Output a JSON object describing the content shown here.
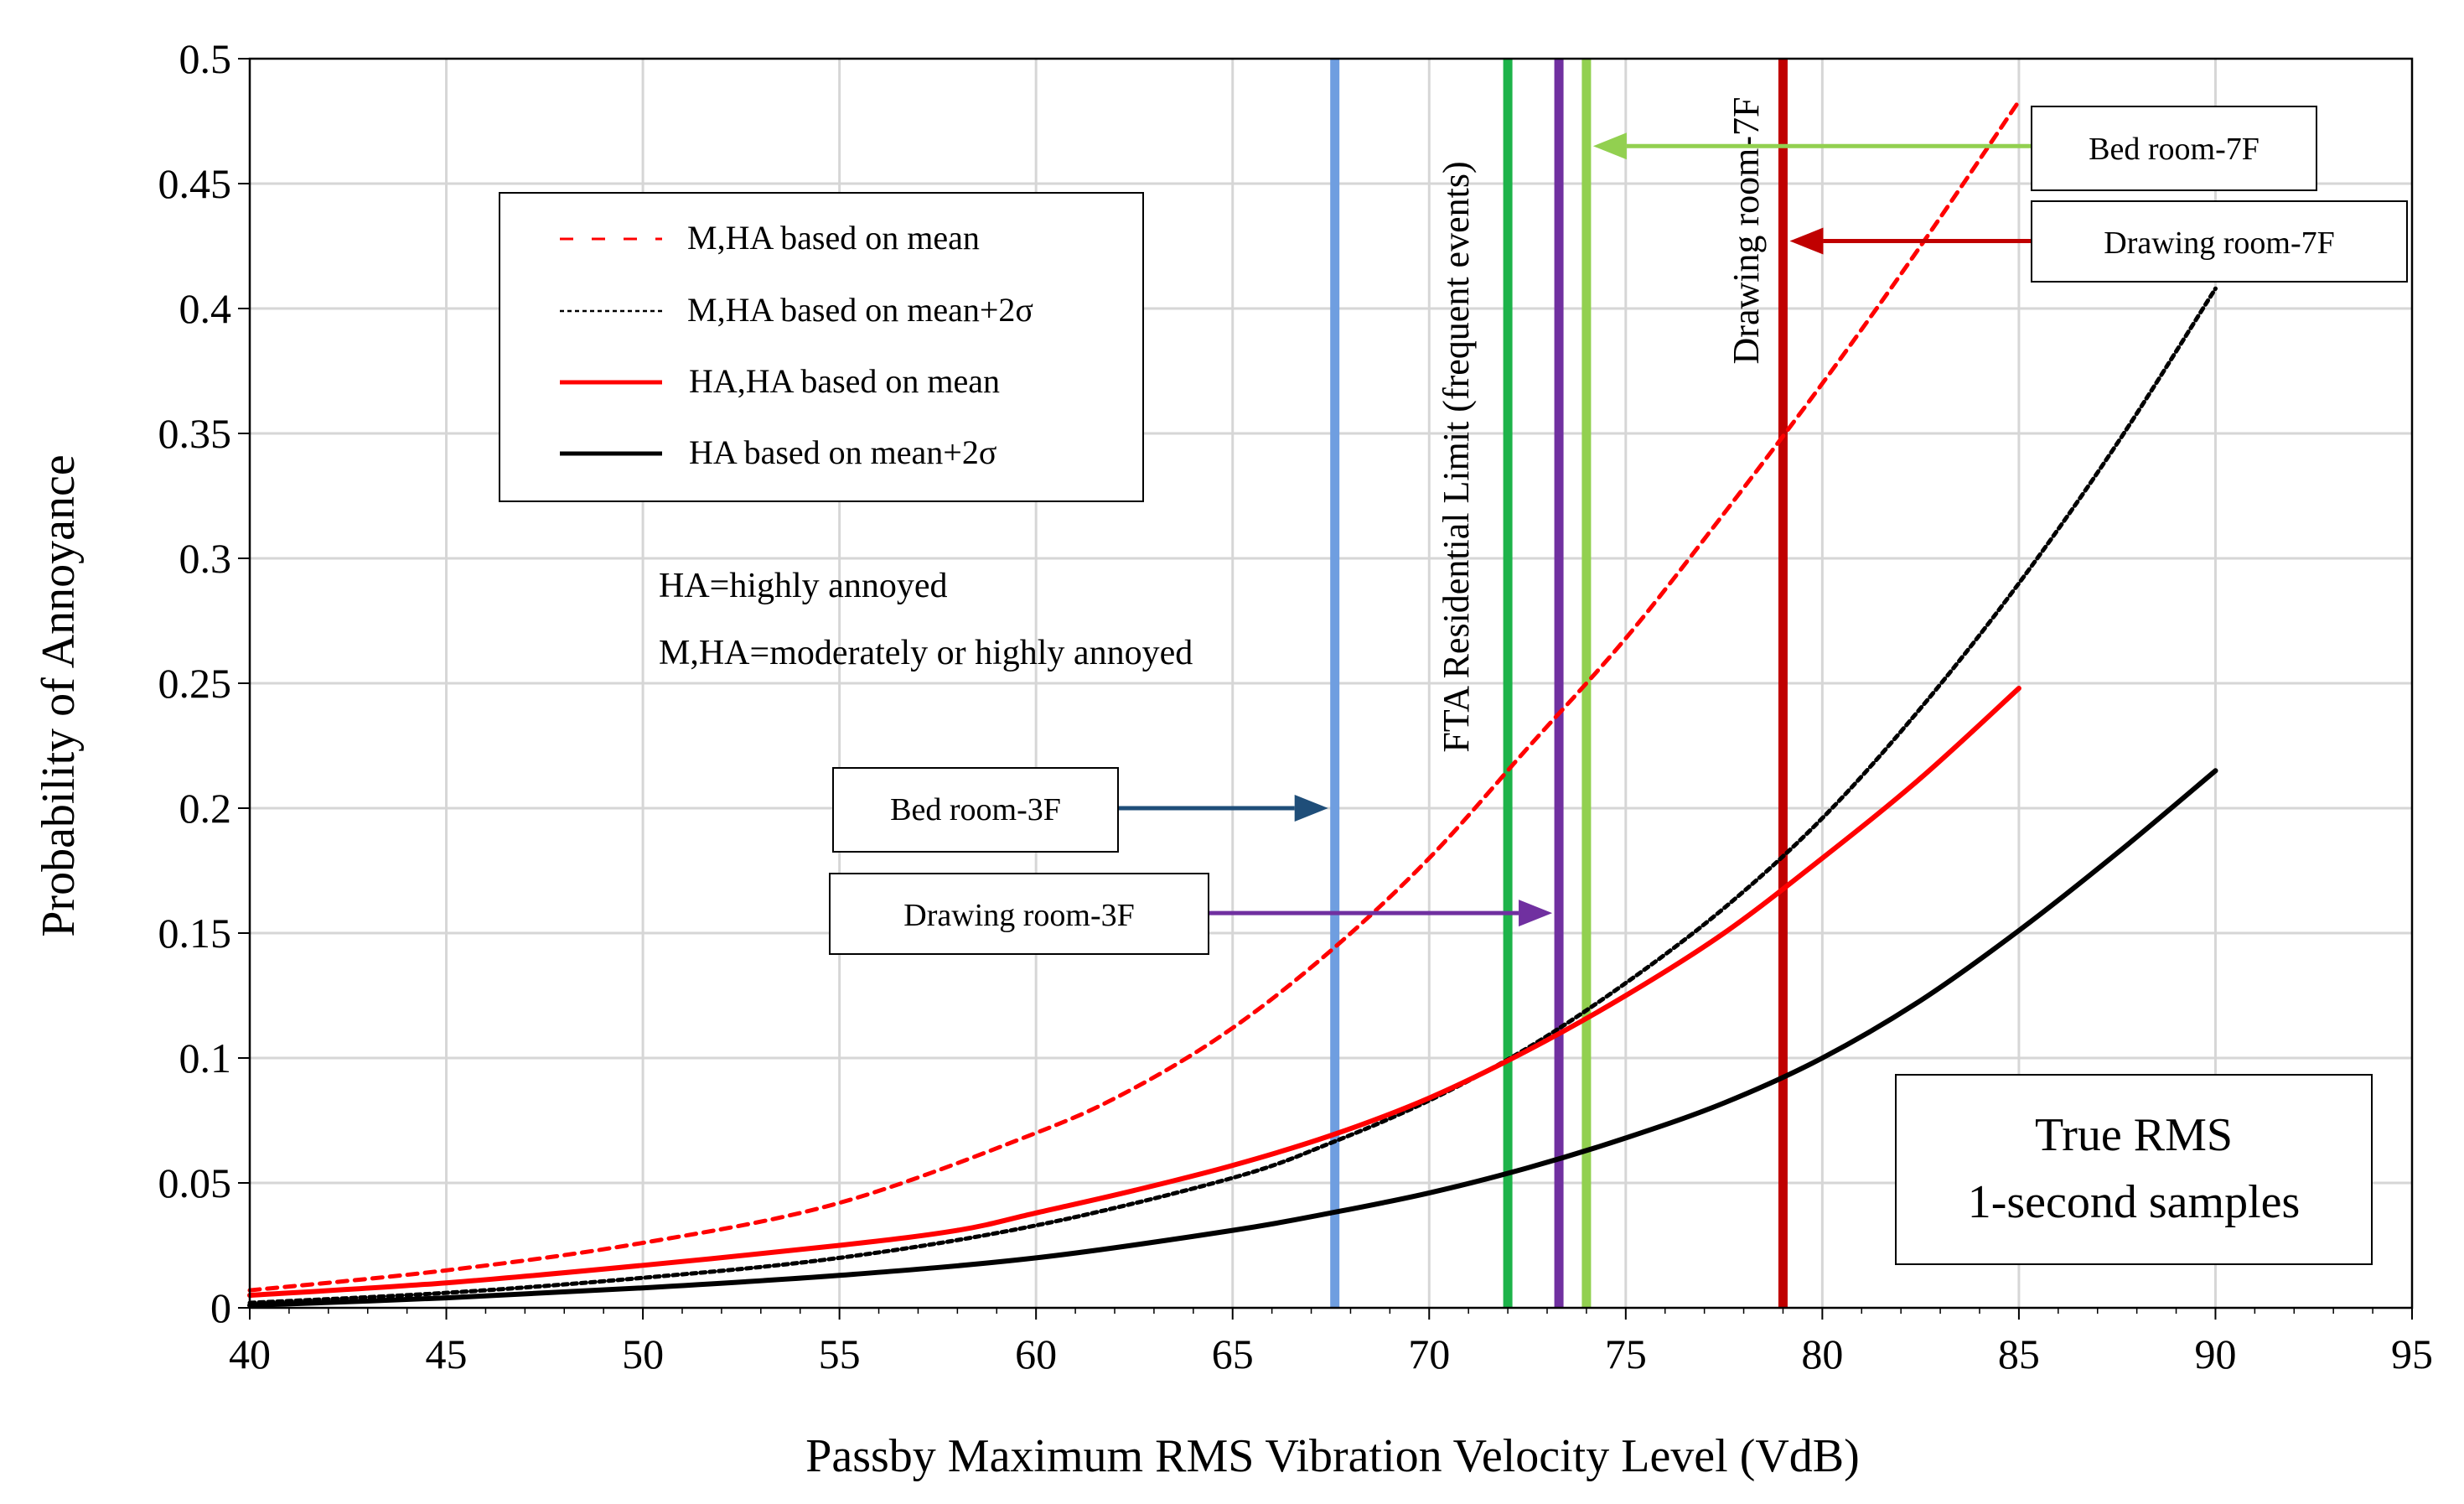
{
  "chart_data": {
    "type": "line",
    "xlabel": "Passby Maximum RMS Vibration Velocity Level (VdB)",
    "ylabel": "Probability of Annoyance",
    "xlim": [
      40,
      95
    ],
    "ylim": [
      0,
      0.5
    ],
    "xticks": [
      "40",
      "45",
      "50",
      "55",
      "60",
      "65",
      "70",
      "75",
      "80",
      "85",
      "90",
      "95"
    ],
    "yticks": [
      "0",
      "0.05",
      "0.1",
      "0.15",
      "0.2",
      "0.25",
      "0.3",
      "0.35",
      "0.4",
      "0.45",
      "0.5"
    ],
    "grid": true,
    "series": [
      {
        "name": "M,HA based on mean",
        "style": "dashed",
        "color": "#ff0000",
        "x": [
          40,
          45,
          50,
          55,
          60,
          62.5,
          65,
          67.5,
          70,
          72.5,
          75,
          77.5,
          80,
          82.5,
          85
        ],
        "y": [
          0.007,
          0.015,
          0.026,
          0.042,
          0.07,
          0.088,
          0.112,
          0.143,
          0.18,
          0.224,
          0.268,
          0.318,
          0.37,
          0.425,
          0.483
        ]
      },
      {
        "name": "M,HA based on mean+2σ",
        "style": "dotted",
        "color": "#000000",
        "x": [
          40,
          45,
          50,
          55,
          60,
          65,
          67.5,
          70,
          72.5,
          75,
          77.5,
          80,
          82.5,
          85,
          87.5,
          90
        ],
        "y": [
          0.002,
          0.006,
          0.012,
          0.02,
          0.033,
          0.052,
          0.066,
          0.083,
          0.104,
          0.13,
          0.16,
          0.196,
          0.24,
          0.29,
          0.346,
          0.408
        ]
      },
      {
        "name": "HA,HA based on mean",
        "style": "solid",
        "color": "#ff0000",
        "x": [
          40,
          45,
          50,
          55,
          58,
          60,
          62.5,
          65,
          67.5,
          70,
          72.5,
          75,
          77.5,
          80,
          82.5,
          85
        ],
        "y": [
          0.005,
          0.01,
          0.017,
          0.025,
          0.031,
          0.038,
          0.047,
          0.057,
          0.069,
          0.084,
          0.103,
          0.125,
          0.15,
          0.18,
          0.212,
          0.248
        ]
      },
      {
        "name": "HA based on mean+2σ",
        "style": "solid",
        "color": "#000000",
        "x": [
          40,
          45,
          50,
          55,
          60,
          65,
          67.5,
          70,
          72.5,
          75,
          77.5,
          80,
          82.5,
          85,
          87.5,
          90
        ],
        "y": [
          0.001,
          0.004,
          0.008,
          0.013,
          0.02,
          0.031,
          0.038,
          0.046,
          0.056,
          0.068,
          0.082,
          0.1,
          0.123,
          0.151,
          0.182,
          0.215
        ]
      }
    ],
    "vertical_lines": [
      {
        "name": "Bed room-3F",
        "x": 67.6,
        "color": "#6f9ee0"
      },
      {
        "name": "FTA Residential Limit (frequent events)",
        "x": 72,
        "color": "#1db34a"
      },
      {
        "name": "Drawing room-3F",
        "x": 73.3,
        "color": "#7030a0"
      },
      {
        "name": "Bed room-7F",
        "x": 74,
        "color": "#92d050"
      },
      {
        "name": "Drawing room-7F",
        "x": 79,
        "color": "#c00000"
      }
    ],
    "vertical_labels": {
      "fta": "FTA Residential Limit (frequent events)",
      "drawing7f": "Drawing room-7F"
    },
    "callouts": [
      {
        "label": "Bed room-7F",
        "arrow_color": "#92d050",
        "target_x": 74,
        "y": 0.465
      },
      {
        "label": "Drawing room-7F",
        "arrow_color": "#c00000",
        "target_x": 79,
        "y": 0.427
      },
      {
        "label": "Bed room-3F",
        "arrow_color": "#1f4e79",
        "target_x": 67.6,
        "y": 0.2
      },
      {
        "label": "Drawing room-3F",
        "arrow_color": "#7030a0",
        "target_x": 73.3,
        "y": 0.158
      }
    ],
    "notes": [
      "HA=highly annoyed",
      "M,HA=moderately or highly annoyed"
    ],
    "annotation": {
      "line1": "True RMS",
      "line2": "1-second samples"
    },
    "legend": {
      "placement": "top-left"
    }
  }
}
